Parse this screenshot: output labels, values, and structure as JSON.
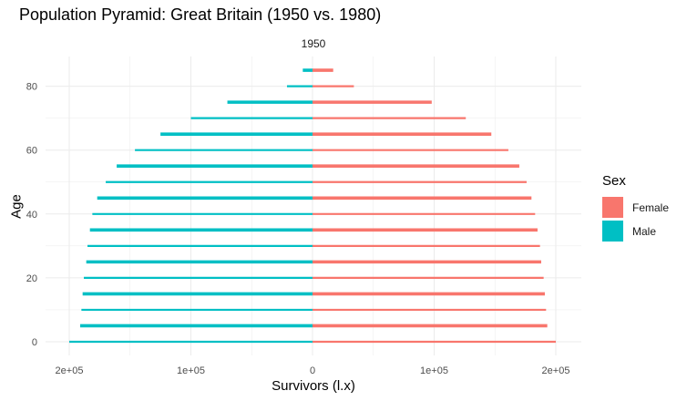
{
  "colors": {
    "female": "#F8766D",
    "male": "#00BFC4",
    "grid": "#ebebeb"
  },
  "chart_data": {
    "type": "bar",
    "orientation": "horizontal",
    "title": "Population Pyramid: Great Britain (1950 vs. 1980)",
    "facet_label": "1950",
    "xlabel": "Survivors (l.x)",
    "ylabel": "Age",
    "xlim": [
      -200000,
      200000
    ],
    "ylim": [
      0,
      85
    ],
    "x_tick_values": [
      -200000,
      -100000,
      0,
      100000,
      200000
    ],
    "x_tick_labels": [
      "2e+05",
      "1e+05",
      "0",
      "1e+05",
      "2e+05"
    ],
    "y_tick_values": [
      0,
      20,
      40,
      60,
      80
    ],
    "y_tick_labels": [
      "0",
      "20",
      "40",
      "60",
      "80"
    ],
    "grid": true,
    "legend_title": "Sex",
    "legend_position": "right",
    "ages": [
      0,
      5,
      10,
      15,
      20,
      25,
      30,
      35,
      40,
      45,
      50,
      55,
      60,
      65,
      70,
      75,
      80,
      85
    ],
    "series": [
      {
        "name": "Female",
        "sign": 1,
        "values": [
          200000,
          193000,
          192000,
          191000,
          190000,
          188000,
          187000,
          185000,
          183000,
          180000,
          176000,
          170000,
          161000,
          147000,
          126000,
          98000,
          34000,
          17000
        ]
      },
      {
        "name": "Male",
        "sign": -1,
        "values": [
          200000,
          191000,
          190000,
          189000,
          188000,
          186000,
          185000,
          183000,
          181000,
          177000,
          170000,
          161000,
          146000,
          125000,
          100000,
          70000,
          21000,
          8000
        ]
      }
    ]
  }
}
